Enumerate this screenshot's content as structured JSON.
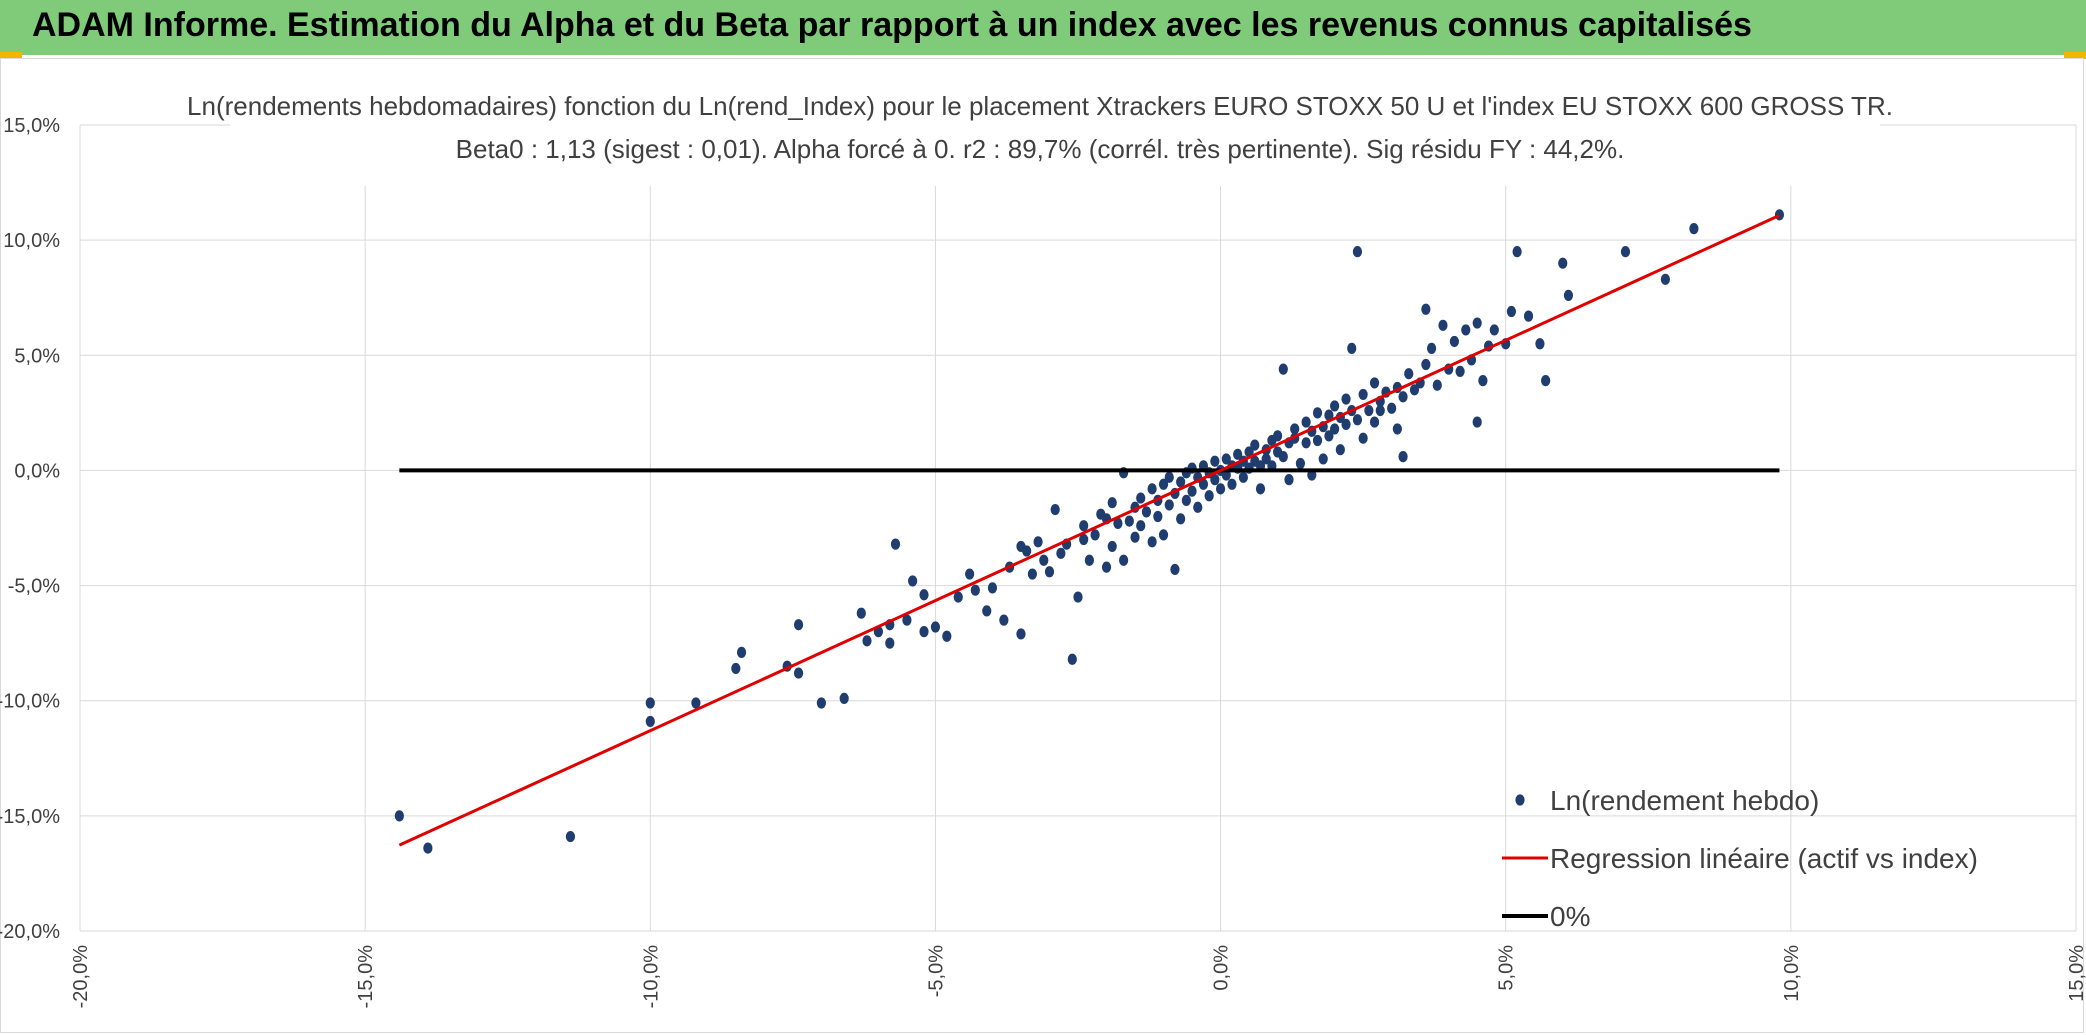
{
  "header": {
    "title": "ADAM Informe. Estimation du Alpha et du Beta par rapport à un index avec les revenus connus capitalisés"
  },
  "colors": {
    "header_bg": "#7fcb7a",
    "points": "#1f3d6e",
    "regression": "#e00000",
    "zero_line": "#000000",
    "grid": "#d9d9d9"
  },
  "chart_data": {
    "type": "scatter",
    "title": "Ln(rendements hebdomadaires) fonction du Ln(rend_Index) pour le placement Xtrackers EURO STOXX 50 U et l'index EU STOXX 600 GROSS TR.",
    "subtitle": "Beta0 : 1,13 (sigest : 0,01). Alpha forcé à 0. r2 : 89,7% (corrél. très pertinente). Sig résidu FY : 44,2%.",
    "xlim": [
      -20,
      15
    ],
    "ylim": [
      -20,
      15
    ],
    "x_ticks": [
      "-20,0%",
      "-15,0%",
      "-10,0%",
      "-5,0%",
      "0,0%",
      "5,0%",
      "10,0%",
      "15,0%"
    ],
    "y_ticks": [
      "15,0%",
      "10,0%",
      "5,0%",
      "0,0%",
      "-5,0%",
      "-10,0%",
      "-15,0%",
      "-20,0%"
    ],
    "grid": true,
    "legend_position": "bottom-right",
    "legend": [
      {
        "label": "Ln(rendement hebdo)",
        "kind": "marker",
        "color": "#1f3d6e"
      },
      {
        "label": "Regression linéaire (actif vs index)",
        "kind": "line",
        "color": "#e00000"
      },
      {
        "label": "0%",
        "kind": "line",
        "color": "#000000"
      }
    ],
    "regression": {
      "slope": 1.13,
      "intercept": 0,
      "x_range": [
        -14.4,
        9.8
      ]
    },
    "zero_line": {
      "y": 0,
      "x_range": [
        -14.4,
        9.8
      ]
    },
    "points": [
      [
        -14.4,
        -15
      ],
      [
        -13.9,
        -16.4
      ],
      [
        -11.4,
        -15.9
      ],
      [
        -10,
        -10.1
      ],
      [
        -10,
        -10.9
      ],
      [
        -9.2,
        -10.1
      ],
      [
        -8.5,
        -8.6
      ],
      [
        -8.4,
        -7.9
      ],
      [
        -7.6,
        -8.5
      ],
      [
        -7.4,
        -8.8
      ],
      [
        -7.4,
        -6.7
      ],
      [
        -7,
        -10.1
      ],
      [
        -6.6,
        -9.9
      ],
      [
        -6.3,
        -6.2
      ],
      [
        -6.2,
        -7.4
      ],
      [
        -6,
        -7
      ],
      [
        -5.8,
        -7.5
      ],
      [
        -5.8,
        -6.7
      ],
      [
        -5.7,
        -3.2
      ],
      [
        -5.5,
        -6.5
      ],
      [
        -5.2,
        -5.4
      ],
      [
        -5.4,
        -4.8
      ],
      [
        -5.2,
        -7
      ],
      [
        -5,
        -6.8
      ],
      [
        -4.8,
        -7.2
      ],
      [
        -4.6,
        -5.5
      ],
      [
        -4.4,
        -4.5
      ],
      [
        -4.3,
        -5.2
      ],
      [
        -4.1,
        -6.1
      ],
      [
        -4,
        -5.1
      ],
      [
        -3.8,
        -6.5
      ],
      [
        -3.7,
        -4.2
      ],
      [
        -3.5,
        -3.3
      ],
      [
        -3.5,
        -7.1
      ],
      [
        -3.4,
        -3.5
      ],
      [
        -3.3,
        -4.5
      ],
      [
        -3.2,
        -3.1
      ],
      [
        -3.1,
        -3.9
      ],
      [
        -3,
        -4.4
      ],
      [
        -2.9,
        -1.7
      ],
      [
        -2.8,
        -3.6
      ],
      [
        -2.7,
        -3.2
      ],
      [
        -2.6,
        -8.2
      ],
      [
        -2.5,
        -5.5
      ],
      [
        -2.4,
        -2.4
      ],
      [
        -2.4,
        -3
      ],
      [
        -2.3,
        -3.9
      ],
      [
        -2.2,
        -2.8
      ],
      [
        -2.1,
        -1.9
      ],
      [
        -2,
        -4.2
      ],
      [
        -2,
        -2.1
      ],
      [
        -1.9,
        -1.4
      ],
      [
        -1.9,
        -3.3
      ],
      [
        -1.8,
        -2.3
      ],
      [
        -1.7,
        -0.1
      ],
      [
        -1.7,
        -3.9
      ],
      [
        -1.6,
        -2.2
      ],
      [
        -1.5,
        -1.6
      ],
      [
        -1.5,
        -2.9
      ],
      [
        -1.4,
        -1.2
      ],
      [
        -1.4,
        -2.4
      ],
      [
        -1.3,
        -1.8
      ],
      [
        -1.2,
        -0.8
      ],
      [
        -1.2,
        -3.1
      ],
      [
        -1.1,
        -1.3
      ],
      [
        -1.1,
        -2
      ],
      [
        -1,
        -0.6
      ],
      [
        -1,
        -2.8
      ],
      [
        -0.9,
        -0.3
      ],
      [
        -0.9,
        -1.5
      ],
      [
        -0.8,
        -4.3
      ],
      [
        -0.8,
        -1
      ],
      [
        -0.7,
        -0.5
      ],
      [
        -0.7,
        -2.1
      ],
      [
        -0.6,
        -0.1
      ],
      [
        -0.6,
        -1.3
      ],
      [
        -0.5,
        0.1
      ],
      [
        -0.5,
        -0.9
      ],
      [
        -0.4,
        -0.3
      ],
      [
        -0.4,
        -1.6
      ],
      [
        -0.3,
        0.2
      ],
      [
        -0.3,
        -0.6
      ],
      [
        -0.2,
        -0.1
      ],
      [
        -0.2,
        -1.1
      ],
      [
        -0.1,
        0.4
      ],
      [
        -0.1,
        -0.4
      ],
      [
        0,
        0
      ],
      [
        0,
        -0.8
      ],
      [
        0.1,
        0.5
      ],
      [
        0.1,
        -0.2
      ],
      [
        0.2,
        0.2
      ],
      [
        0.2,
        -0.6
      ],
      [
        0.3,
        0.7
      ],
      [
        0.3,
        0.1
      ],
      [
        0.4,
        0.4
      ],
      [
        0.4,
        -0.3
      ],
      [
        0.5,
        0.8
      ],
      [
        0.5,
        0.1
      ],
      [
        0.6,
        1.1
      ],
      [
        0.6,
        0.4
      ],
      [
        0.7,
        0.2
      ],
      [
        0.7,
        -0.8
      ],
      [
        0.8,
        0.9
      ],
      [
        0.8,
        0.5
      ],
      [
        0.9,
        1.3
      ],
      [
        0.9,
        0.2
      ],
      [
        1,
        1.5
      ],
      [
        1,
        0.8
      ],
      [
        1.1,
        4.4
      ],
      [
        1.1,
        0.6
      ],
      [
        1.2,
        1.2
      ],
      [
        1.2,
        -0.4
      ],
      [
        1.3,
        1.8
      ],
      [
        1.3,
        1.4
      ],
      [
        1.4,
        0.3
      ],
      [
        1.5,
        2.1
      ],
      [
        1.5,
        1.2
      ],
      [
        1.6,
        1.7
      ],
      [
        1.6,
        -0.2
      ],
      [
        1.7,
        2.5
      ],
      [
        1.7,
        1.3
      ],
      [
        1.8,
        1.9
      ],
      [
        1.8,
        0.5
      ],
      [
        1.9,
        2.4
      ],
      [
        1.9,
        1.5
      ],
      [
        2,
        2.8
      ],
      [
        2,
        1.8
      ],
      [
        2.1,
        2.3
      ],
      [
        2.1,
        0.9
      ],
      [
        2.2,
        3.1
      ],
      [
        2.2,
        2
      ],
      [
        2.3,
        2.6
      ],
      [
        2.3,
        5.3
      ],
      [
        2.4,
        9.5
      ],
      [
        2.4,
        2.2
      ],
      [
        2.5,
        3.3
      ],
      [
        2.5,
        1.4
      ],
      [
        2.6,
        2.6
      ],
      [
        2.7,
        3.8
      ],
      [
        2.7,
        2.1
      ],
      [
        2.8,
        3
      ],
      [
        2.8,
        2.6
      ],
      [
        2.9,
        3.4
      ],
      [
        3,
        2.7
      ],
      [
        3.1,
        1.8
      ],
      [
        3.1,
        3.6
      ],
      [
        3.2,
        3.2
      ],
      [
        3.2,
        0.6
      ],
      [
        3.3,
        4.2
      ],
      [
        3.4,
        3.5
      ],
      [
        3.5,
        3.8
      ],
      [
        3.6,
        4.6
      ],
      [
        3.6,
        7
      ],
      [
        3.7,
        5.3
      ],
      [
        3.8,
        3.7
      ],
      [
        3.9,
        6.3
      ],
      [
        4,
        4.4
      ],
      [
        4.1,
        5.6
      ],
      [
        4.2,
        4.3
      ],
      [
        4.3,
        6.1
      ],
      [
        4.4,
        4.8
      ],
      [
        4.5,
        2.1
      ],
      [
        4.5,
        6.4
      ],
      [
        4.6,
        3.9
      ],
      [
        4.7,
        5.4
      ],
      [
        4.8,
        6.1
      ],
      [
        5,
        5.5
      ],
      [
        5.1,
        6.9
      ],
      [
        5.2,
        9.5
      ],
      [
        5.4,
        6.7
      ],
      [
        5.6,
        5.5
      ],
      [
        5.7,
        3.9
      ],
      [
        6,
        9
      ],
      [
        6.1,
        7.6
      ],
      [
        7.1,
        9.5
      ],
      [
        7.8,
        8.3
      ],
      [
        8.3,
        10.5
      ],
      [
        9.8,
        11.1
      ]
    ]
  }
}
